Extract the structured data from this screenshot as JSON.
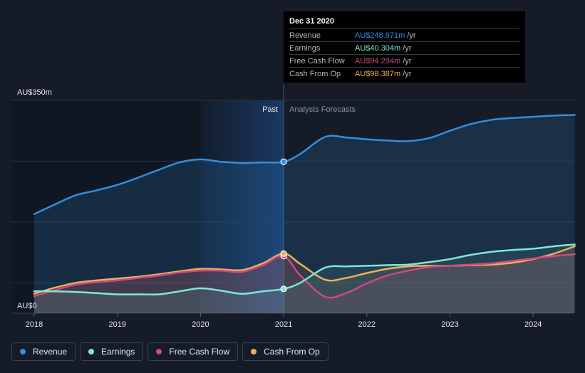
{
  "chart_data": {
    "type": "area",
    "x_ticks": [
      "2018",
      "2019",
      "2020",
      "2021",
      "2022",
      "2023",
      "2024"
    ],
    "y_ticks": [
      "AU$0",
      "AU$350m"
    ],
    "ylim": [
      0,
      350
    ],
    "section_labels": {
      "past": "Past",
      "forecast": "Analysts Forecasts"
    },
    "grid": true,
    "legend_position": "bottom",
    "series": [
      {
        "name": "Revenue",
        "color": "#2f8fe0",
        "x": [
          2018.0,
          2018.25,
          2018.5,
          2018.75,
          2019.0,
          2019.25,
          2019.5,
          2019.75,
          2020.0,
          2020.25,
          2020.5,
          2020.75,
          2021.0,
          2021.2,
          2021.5,
          2021.75,
          2022.0,
          2022.25,
          2022.5,
          2022.75,
          2023.0,
          2023.25,
          2023.5,
          2023.75,
          2024.0,
          2024.25,
          2024.5
        ],
        "values": [
          163,
          179,
          194,
          202,
          211,
          223,
          236,
          248,
          253,
          249,
          247,
          248,
          249,
          262,
          290,
          289,
          286,
          284,
          283,
          288,
          300,
          311,
          318,
          321,
          323,
          325,
          326
        ]
      },
      {
        "name": "Earnings",
        "color": "#7ee8d8",
        "x": [
          2018.0,
          2018.25,
          2018.5,
          2018.75,
          2019.0,
          2019.25,
          2019.5,
          2019.75,
          2020.0,
          2020.25,
          2020.5,
          2020.75,
          2021.0,
          2021.2,
          2021.5,
          2021.75,
          2022.0,
          2022.25,
          2022.5,
          2022.75,
          2023.0,
          2023.25,
          2023.5,
          2023.75,
          2024.0,
          2024.25,
          2024.5
        ],
        "values": [
          36,
          36,
          35,
          33,
          31,
          31,
          31,
          36,
          41,
          37,
          32,
          36,
          40,
          50,
          75,
          77,
          78,
          79,
          80,
          84,
          89,
          96,
          101,
          104,
          106,
          110,
          113
        ]
      },
      {
        "name": "Free Cash Flow",
        "color": "#d0497c",
        "x": [
          2018.0,
          2018.25,
          2018.5,
          2018.75,
          2019.0,
          2019.25,
          2019.5,
          2019.75,
          2020.0,
          2020.25,
          2020.5,
          2020.75,
          2021.0,
          2021.2,
          2021.5,
          2021.75,
          2022.0,
          2022.25,
          2022.5,
          2022.75,
          2023.0,
          2023.25,
          2023.5,
          2023.75,
          2024.0,
          2024.25,
          2024.5
        ],
        "values": [
          28,
          38,
          47,
          51,
          54,
          58,
          62,
          67,
          70,
          70,
          68,
          79,
          94,
          62,
          27,
          33,
          49,
          62,
          70,
          76,
          78,
          80,
          82,
          86,
          90,
          94,
          97
        ]
      },
      {
        "name": "Cash From Op",
        "color": "#f0ad5c",
        "x": [
          2018.0,
          2018.25,
          2018.5,
          2018.75,
          2019.0,
          2019.25,
          2019.5,
          2019.75,
          2020.0,
          2020.25,
          2020.5,
          2020.75,
          2021.0,
          2021.2,
          2021.5,
          2021.75,
          2022.0,
          2022.25,
          2022.5,
          2022.75,
          2023.0,
          2023.25,
          2023.5,
          2023.75,
          2024.0,
          2024.25,
          2024.5
        ],
        "values": [
          32,
          42,
          50,
          54,
          57,
          60,
          64,
          69,
          73,
          72,
          71,
          82,
          98,
          81,
          55,
          58,
          66,
          73,
          77,
          78,
          78,
          79,
          80,
          83,
          89,
          98,
          110
        ]
      }
    ]
  },
  "tooltip": {
    "date": "Dec 31 2020",
    "rows": [
      {
        "label": "Revenue",
        "value": "AU$248.971m",
        "unit": "/yr",
        "color": "#2f8fe0"
      },
      {
        "label": "Earnings",
        "value": "AU$40.304m",
        "unit": "/yr",
        "color": "#7ee8d8"
      },
      {
        "label": "Free Cash Flow",
        "value": "AU$94.294m",
        "unit": "/yr",
        "color": "#d0497c"
      },
      {
        "label": "Cash From Op",
        "value": "AU$98.387m",
        "unit": "/yr",
        "color": "#f0ad5c"
      }
    ]
  },
  "legend": [
    {
      "label": "Revenue",
      "color": "#2f8fe0"
    },
    {
      "label": "Earnings",
      "color": "#7ee8d8"
    },
    {
      "label": "Free Cash Flow",
      "color": "#d0497c"
    },
    {
      "label": "Cash From Op",
      "color": "#f0ad5c"
    }
  ]
}
